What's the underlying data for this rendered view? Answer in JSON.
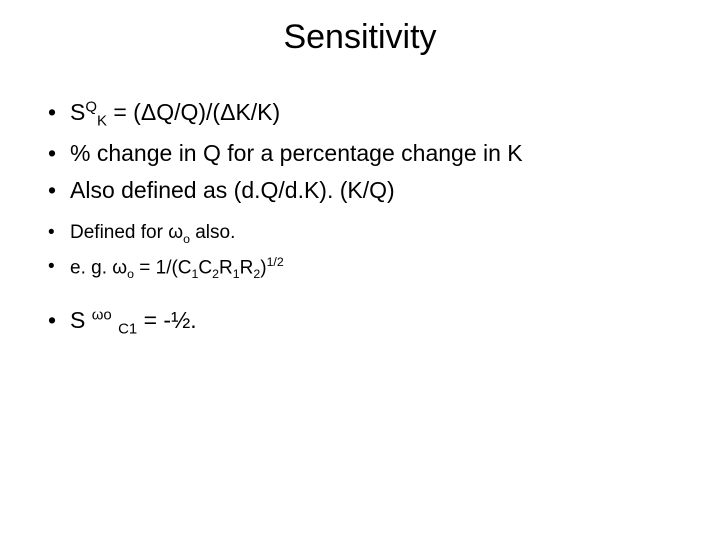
{
  "title": "Sensitivity",
  "bullets_large": [
    {
      "pre": "S",
      "sup1": "Q",
      "sub1": "K",
      "mid": " = (",
      "delta1": "Δ",
      "mid2": "Q/Q)/(",
      "delta2": "Δ",
      "post": "K/K)"
    },
    {
      "text": "% change in Q for a percentage change in K"
    },
    {
      "text": "Also defined as (d.Q/d.K). (K/Q)"
    }
  ],
  "bullets_med": [
    {
      "pre": "Defined for ",
      "omega": "ω",
      "sub": "o",
      "post": " also."
    },
    {
      "pre": "e. g. ",
      "omega": "ω",
      "sub": "o",
      "mid": " = 1/(C",
      "s1": "1",
      "m2": "C",
      "s2": "2",
      "m3": "R",
      "s3": "1",
      "m4": "R",
      "s4": "2",
      "m5": ")",
      "exp": "1/2"
    }
  ],
  "bullet_last": {
    "pre": "S ",
    "omega": "ω",
    "so": "o",
    "mid": " ",
    "c": "C",
    "c1": "1",
    "post": " = -½."
  }
}
